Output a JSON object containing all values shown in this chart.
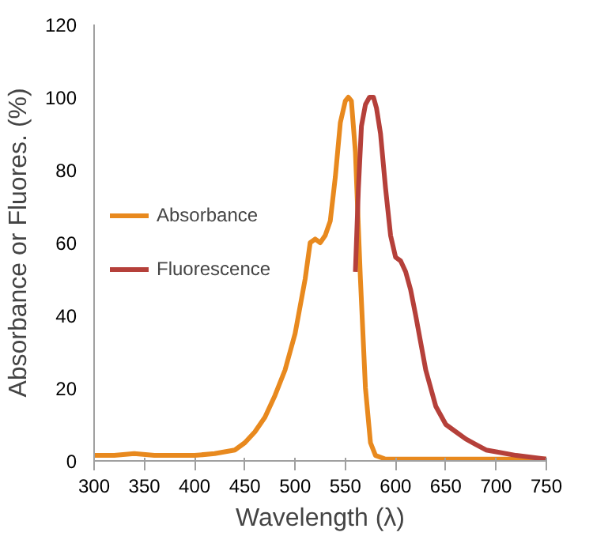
{
  "chart_data": {
    "type": "line",
    "xlabel": "Wavelength (λ)",
    "ylabel": "Absorbance or Fluores. (%)",
    "xlim": [
      300,
      750
    ],
    "xticks": [
      300,
      350,
      400,
      450,
      500,
      550,
      600,
      650,
      700,
      750
    ],
    "ylim": [
      0,
      120
    ],
    "yticks": [
      0,
      20,
      40,
      60,
      80,
      100,
      120
    ],
    "grid": false,
    "legend": "left",
    "marker": "none",
    "line_style": "solid",
    "series": [
      {
        "name": "Absorbance",
        "color": "#e8891e",
        "x": [
          300,
          320,
          340,
          360,
          380,
          400,
          420,
          440,
          450,
          460,
          470,
          480,
          490,
          500,
          510,
          515,
          520,
          525,
          530,
          535,
          540,
          545,
          550,
          553,
          556,
          560,
          565,
          570,
          575,
          580,
          590,
          600,
          650,
          700,
          750
        ],
        "values": [
          1.5,
          1.5,
          2,
          1.5,
          1.5,
          1.5,
          2,
          3,
          5,
          8,
          12,
          18,
          25,
          35,
          50,
          60,
          61,
          60,
          62,
          66,
          78,
          93,
          99,
          100,
          99,
          85,
          50,
          20,
          5,
          1.5,
          0.5,
          0.5,
          0.5,
          0.5,
          0.5
        ]
      },
      {
        "name": "Fluorescence",
        "color": "#b5403a",
        "x": [
          560,
          563,
          566,
          570,
          574,
          578,
          581,
          585,
          590,
          595,
          600,
          605,
          610,
          615,
          620,
          630,
          640,
          650,
          660,
          670,
          680,
          690,
          700,
          720,
          750
        ],
        "values": [
          52,
          75,
          92,
          98,
          100,
          100,
          97,
          90,
          75,
          62,
          56,
          55,
          52,
          47,
          40,
          25,
          15,
          10,
          8,
          6,
          4.5,
          3,
          2.5,
          1.5,
          0.5
        ]
      }
    ]
  }
}
